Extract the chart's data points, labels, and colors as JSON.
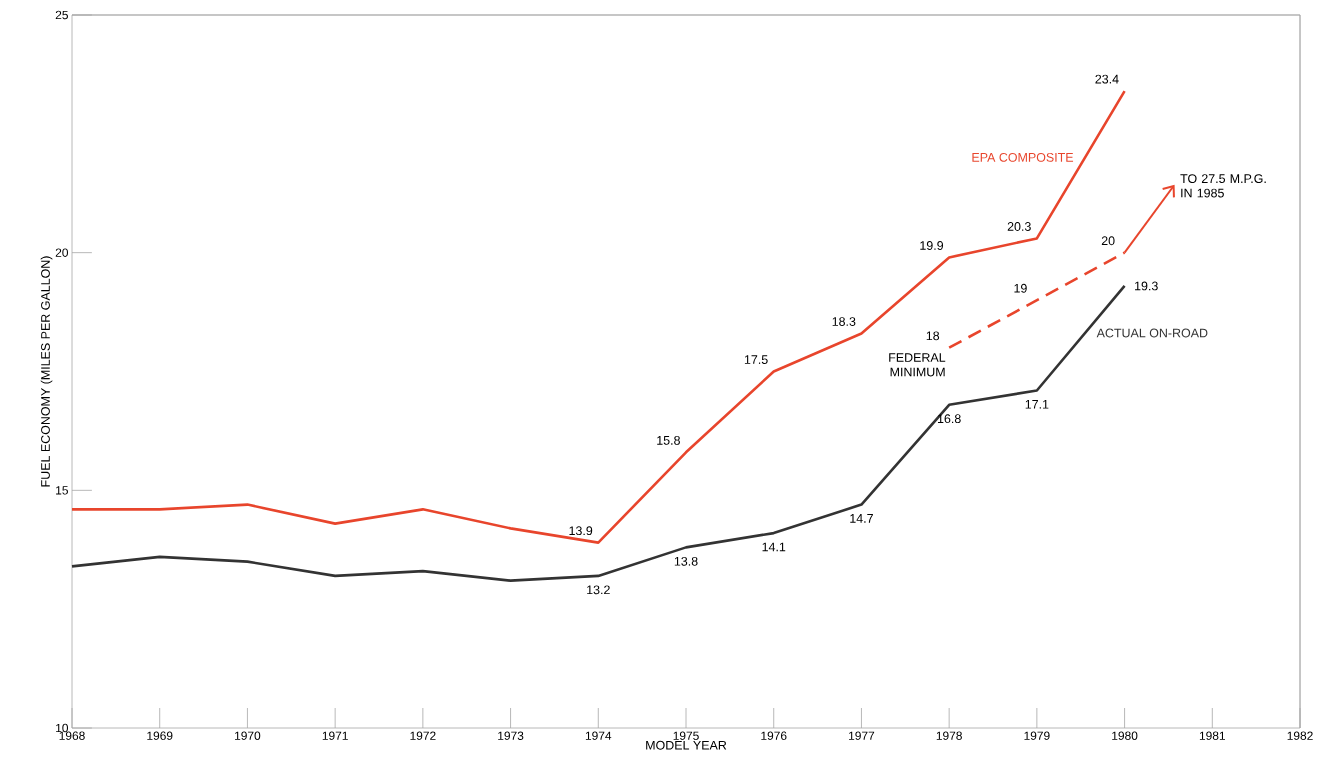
{
  "chart_data": {
    "type": "line",
    "xlabel": "MODEL YEAR",
    "ylabel": "FUEL ECONOMY (MILES PER GALLON)",
    "xlim": [
      1968,
      1982
    ],
    "xticks": [
      1968,
      1969,
      1970,
      1971,
      1972,
      1973,
      1974,
      1975,
      1976,
      1977,
      1978,
      1979,
      1980,
      1981,
      1982
    ],
    "ylim": [
      10,
      25
    ],
    "yticks": [
      10,
      15,
      20,
      25
    ],
    "grid": false,
    "marker": "none",
    "series": [
      {
        "name": "EPA COMPOSITE",
        "color": "#e8452c",
        "line_style": "solid",
        "x": [
          1968,
          1969,
          1970,
          1971,
          1972,
          1973,
          1974,
          1975,
          1976,
          1977,
          1978,
          1979,
          1980
        ],
        "values": [
          14.6,
          14.6,
          14.7,
          14.3,
          14.6,
          14.2,
          13.9,
          15.8,
          17.5,
          18.3,
          19.9,
          20.3,
          23.4
        ],
        "value_labels": [
          null,
          null,
          null,
          null,
          null,
          null,
          "13.9",
          "15.8",
          "17.5",
          "18.3",
          "19.9",
          "20.3",
          "23.4"
        ]
      },
      {
        "name": "ACTUAL ON-ROAD",
        "color": "#333333",
        "line_style": "solid",
        "x": [
          1968,
          1969,
          1970,
          1971,
          1972,
          1973,
          1974,
          1975,
          1976,
          1977,
          1978,
          1979,
          1980
        ],
        "values": [
          13.4,
          13.6,
          13.5,
          13.2,
          13.3,
          13.1,
          13.2,
          13.8,
          14.1,
          14.7,
          16.8,
          17.1,
          19.3
        ],
        "value_labels": [
          null,
          null,
          null,
          null,
          null,
          null,
          "13.2",
          "13.8",
          "14.1",
          "14.7",
          "16.8",
          "17.1",
          "19.3"
        ]
      },
      {
        "name": "FEDERAL MINIMUM",
        "color": "#e8452c",
        "line_style": "dashed",
        "x": [
          1978,
          1979,
          1980
        ],
        "values": [
          18,
          19,
          20
        ],
        "value_labels": [
          "18",
          "19",
          "20"
        ]
      }
    ],
    "annotations": [
      {
        "text": "TO 27.5 M.P.G. IN 1985",
        "x": 1980,
        "y": 20
      }
    ]
  }
}
